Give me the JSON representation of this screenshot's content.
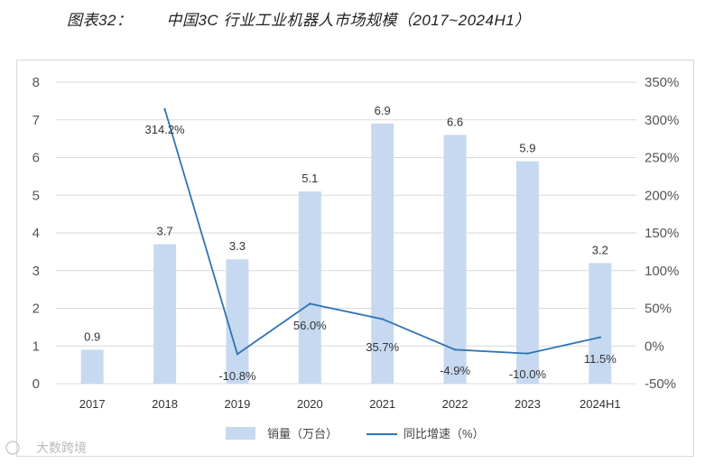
{
  "title": {
    "label": "图表32：",
    "text": "中国3C 行业工业机器人市场规模（2017~2024H1）"
  },
  "watermark": "大数跨境",
  "chart_data": {
    "type": "bar+line",
    "categories": [
      "2017",
      "2018",
      "2019",
      "2020",
      "2021",
      "2022",
      "2023",
      "2024H1"
    ],
    "series": [
      {
        "name": "销量（万台）",
        "type": "bar",
        "axis": "left",
        "color": "#c6d9f1",
        "values": [
          0.9,
          3.7,
          3.3,
          5.1,
          6.9,
          6.6,
          5.9,
          3.2
        ],
        "labels": [
          "0.9",
          "3.7",
          "3.3",
          "5.1",
          "6.9",
          "6.6",
          "5.9",
          "3.2"
        ]
      },
      {
        "name": "同比增速（%）",
        "type": "line",
        "axis": "right",
        "color": "#2f74b5",
        "values": [
          null,
          314.2,
          -10.8,
          56.0,
          35.7,
          -4.9,
          -10.0,
          11.5
        ],
        "labels": [
          null,
          "314.2%",
          "-10.8%",
          "56.0%",
          "35.7%",
          "-4.9%",
          "-10.0%",
          "11.5%"
        ]
      }
    ],
    "y_left": {
      "min": 0,
      "max": 8,
      "step": 1,
      "ticks": [
        "0",
        "1",
        "2",
        "3",
        "4",
        "5",
        "6",
        "7",
        "8"
      ]
    },
    "y_right": {
      "min": -50,
      "max": 350,
      "step": 50,
      "ticks": [
        "-50%",
        "0%",
        "50%",
        "100%",
        "150%",
        "200%",
        "250%",
        "300%",
        "350%"
      ]
    },
    "grid": true,
    "legend_position": "bottom"
  }
}
